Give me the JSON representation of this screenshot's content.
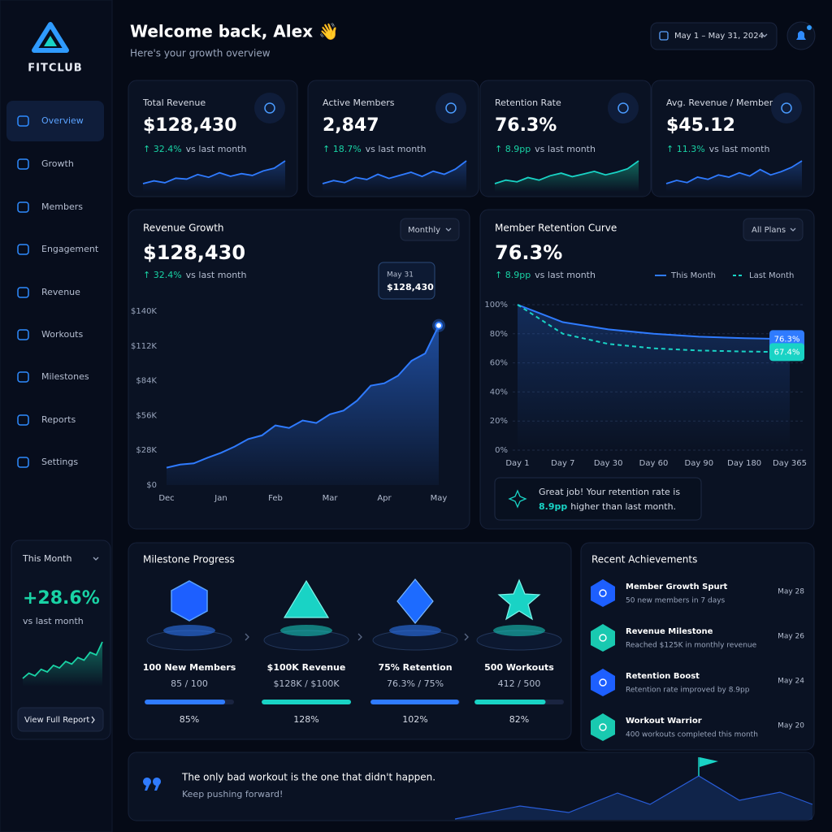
{
  "brand": "FITCLUB",
  "nav": [
    "Overview",
    "Growth",
    "Members",
    "Engagement",
    "Revenue",
    "Workouts",
    "Milestones",
    "Reports",
    "Settings"
  ],
  "header": {
    "title": "Welcome back, Alex 👋",
    "subtitle": "Here's your growth overview",
    "date_range": "May 1 – May 31, 2024"
  },
  "kpis": [
    {
      "label": "Total Revenue",
      "value": "$128,430",
      "change": "↑ 32.4%",
      "compare": "vs last month",
      "trend": [
        30,
        33,
        31,
        36,
        35,
        40,
        37,
        42,
        38,
        41,
        39,
        44,
        47,
        55
      ]
    },
    {
      "label": "Active Members",
      "value": "2,847",
      "change": "↑ 18.7%",
      "compare": "vs last month",
      "trend": [
        32,
        35,
        33,
        38,
        36,
        41,
        37,
        40,
        43,
        39,
        44,
        41,
        46,
        54
      ]
    },
    {
      "label": "Retention Rate",
      "value": "76.3%",
      "change": "↑ 8.9pp",
      "compare": "vs last month",
      "trend": [
        30,
        34,
        32,
        37,
        34,
        39,
        42,
        38,
        41,
        44,
        40,
        43,
        47,
        56
      ]
    },
    {
      "label": "Avg. Revenue / Member",
      "value": "$45.12",
      "change": "↑ 11.3%",
      "compare": "vs last month",
      "trend": [
        31,
        34,
        32,
        37,
        35,
        39,
        37,
        41,
        38,
        44,
        39,
        42,
        46,
        52
      ]
    }
  ],
  "chart_data": [
    {
      "type": "line",
      "title": "Revenue Growth",
      "headline": "$128,430",
      "change": "↑ 32.4%",
      "compare": "vs last month",
      "period": "Monthly",
      "tooltip": {
        "date": "May 31",
        "value": "$128,430"
      },
      "categories": [
        "Dec",
        null,
        null,
        null,
        "Jan",
        null,
        null,
        null,
        "Feb",
        null,
        null,
        null,
        "Mar",
        null,
        null,
        null,
        "Apr",
        null,
        null,
        null,
        "May"
      ],
      "values": [
        14000,
        16500,
        17500,
        22000,
        26000,
        31000,
        37000,
        40000,
        48000,
        46000,
        52000,
        50000,
        57000,
        60000,
        68000,
        80000,
        82000,
        88000,
        100000,
        106000,
        128430
      ],
      "color": "#2f7bff",
      "grid": false,
      "ylim": [
        0,
        140000
      ],
      "yticks": [
        {
          "value": 0,
          "label": "$0"
        },
        {
          "value": 28000,
          "label": "$28K"
        },
        {
          "value": 56000,
          "label": "$56K"
        },
        {
          "value": 84000,
          "label": "$84K"
        },
        {
          "value": 112000,
          "label": "$112K"
        },
        {
          "value": 140000,
          "label": "$140K"
        }
      ]
    },
    {
      "type": "line",
      "title": "Member Retention Curve",
      "headline": "76.3%",
      "change": "↑ 8.9pp",
      "compare": "vs last month",
      "filter": "All Plans",
      "categories": [
        "Day 1",
        "Day 7",
        "Day 30",
        "Day 60",
        "Day 90",
        "Day 180",
        "Day 365"
      ],
      "series": [
        {
          "name": "This Month",
          "color": "#2f7bff",
          "dashed": false,
          "values": [
            100,
            88,
            83,
            80,
            78,
            77,
            76.3
          ],
          "value_labels": [
            null,
            null,
            null,
            null,
            null,
            null,
            "76.3%"
          ]
        },
        {
          "name": "Last Month",
          "color": "#19d3c5",
          "dashed": true,
          "values": [
            100,
            80,
            73,
            70,
            68.5,
            67.8,
            67.4
          ],
          "value_labels": [
            null,
            null,
            null,
            null,
            null,
            null,
            "67.4%"
          ]
        }
      ],
      "grid": true,
      "ylim": [
        0,
        100
      ],
      "yticks": [
        {
          "value": 0,
          "label": "0%"
        },
        {
          "value": 20,
          "label": "20%"
        },
        {
          "value": 40,
          "label": "40%"
        },
        {
          "value": 60,
          "label": "60%"
        },
        {
          "value": 80,
          "label": "80%"
        },
        {
          "value": 100,
          "label": "100%"
        }
      ],
      "note": {
        "text": "Great job! Your retention rate is",
        "highlight": "8.9pp",
        "text_end": "higher than last month."
      }
    }
  ],
  "this_month": {
    "label": "This Month",
    "value": "+28.6%",
    "compare": "vs last month",
    "trend": [
      20,
      24,
      22,
      27,
      25,
      30,
      28,
      33,
      31,
      36,
      34,
      40,
      38,
      48
    ],
    "button": "View Full Report"
  },
  "milestones": {
    "title": "Milestone Progress",
    "items": [
      {
        "name": "100 New Members",
        "progress": "85 / 100",
        "percent": 85,
        "percent_label": "85%"
      },
      {
        "name": "$100K Revenue",
        "progress": "$128K / $100K",
        "percent": 128,
        "percent_label": "128%"
      },
      {
        "name": "75% Retention",
        "progress": "76.3% / 75%",
        "percent": 102,
        "percent_label": "102%"
      },
      {
        "name": "500 Workouts",
        "progress": "412 / 500",
        "percent": 82,
        "percent_label": "82%"
      }
    ]
  },
  "achievements": {
    "title": "Recent Achievements",
    "items": [
      {
        "title": "Member Growth Spurt",
        "description": "50 new members in 7 days",
        "date": "May 28"
      },
      {
        "title": "Revenue Milestone",
        "description": "Reached $125K in monthly revenue",
        "date": "May 26"
      },
      {
        "title": "Retention Boost",
        "description": "Retention rate improved by 8.9pp",
        "date": "May 24"
      },
      {
        "title": "Workout Warrior",
        "description": "400 workouts completed this month",
        "date": "May 20"
      }
    ]
  },
  "quote": {
    "text": "The only bad workout is the one that didn't happen.",
    "subtext": "Keep pushing forward!"
  }
}
